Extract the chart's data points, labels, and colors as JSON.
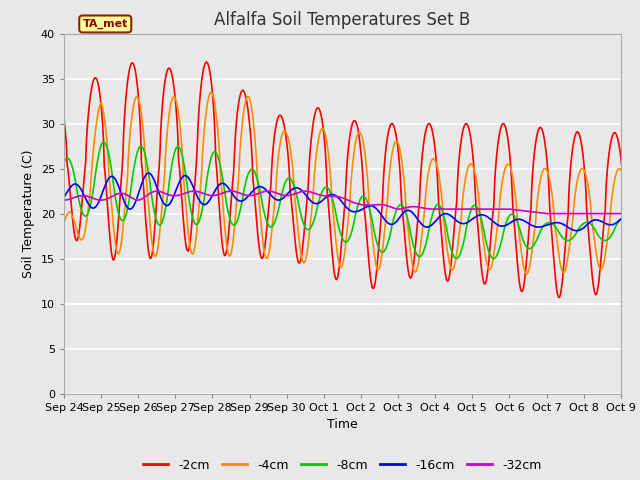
{
  "title": "Alfalfa Soil Temperatures Set B",
  "xlabel": "Time",
  "ylabel": "Soil Temperature (C)",
  "ylim": [
    0,
    40
  ],
  "yticks": [
    0,
    5,
    10,
    15,
    20,
    25,
    30,
    35,
    40
  ],
  "fig_bg_color": "#e8e8e8",
  "plot_bg_color": "#e8e8e8",
  "grid_color": "#ffffff",
  "annotation_text": "TA_met",
  "annotation_bg": "#ffff99",
  "annotation_border": "#8b2500",
  "annotation_text_color": "#8b0000",
  "legend_labels": [
    "-2cm",
    "-4cm",
    "-8cm",
    "-16cm",
    "-32cm"
  ],
  "line_colors": [
    "#ff0000",
    "#ff8c00",
    "#00cc00",
    "#0000ff",
    "#cc00cc"
  ],
  "line_width": 1.2,
  "n_days": 16,
  "points_per_day": 48,
  "x_tick_labels": [
    "Sep 24",
    "Sep 25",
    "Sep 26",
    "Sep 27",
    "Sep 28",
    "Sep 29",
    "Sep 30",
    "Oct 1",
    "Oct 2",
    "Oct 3",
    "Oct 4",
    "Oct 5",
    "Oct 6",
    "Oct 7",
    "Oct 8",
    "Oct 9"
  ],
  "figsize": [
    6.4,
    4.8
  ],
  "dpi": 100
}
